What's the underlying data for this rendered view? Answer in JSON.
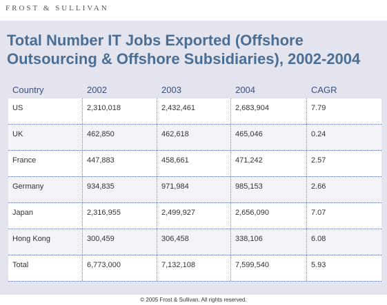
{
  "header": {
    "brand": "FROST & SULLIVAN"
  },
  "title": "Total Number IT Jobs Exported (Offshore Outsourcing & Offshore Subsidiaries), 2002-2004",
  "table": {
    "columns": [
      "Country",
      "2002",
      "2003",
      "2004",
      "CAGR"
    ],
    "rows": [
      [
        "US",
        "2,310,018",
        "2,432,461",
        "2,683,904",
        "7.79"
      ],
      [
        "UK",
        "462,850",
        "462,618",
        "465,046",
        "0.24"
      ],
      [
        "France",
        "447,883",
        "458,661",
        "471,242",
        "2.57"
      ],
      [
        "Germany",
        "934,835",
        "971,984",
        "985,153",
        "2.66"
      ],
      [
        "Japan",
        "2,316,955",
        "2,499,927",
        "2,656,090",
        "7.07"
      ],
      [
        "Hong Kong",
        "300,459",
        "306,458",
        "338,106",
        "6.08"
      ],
      [
        "Total",
        "6,773,000",
        "7,132,108",
        "7,599,540",
        "5.93"
      ]
    ]
  },
  "footer": "© 2005 Frost & Sullivan. All rights reserved."
}
